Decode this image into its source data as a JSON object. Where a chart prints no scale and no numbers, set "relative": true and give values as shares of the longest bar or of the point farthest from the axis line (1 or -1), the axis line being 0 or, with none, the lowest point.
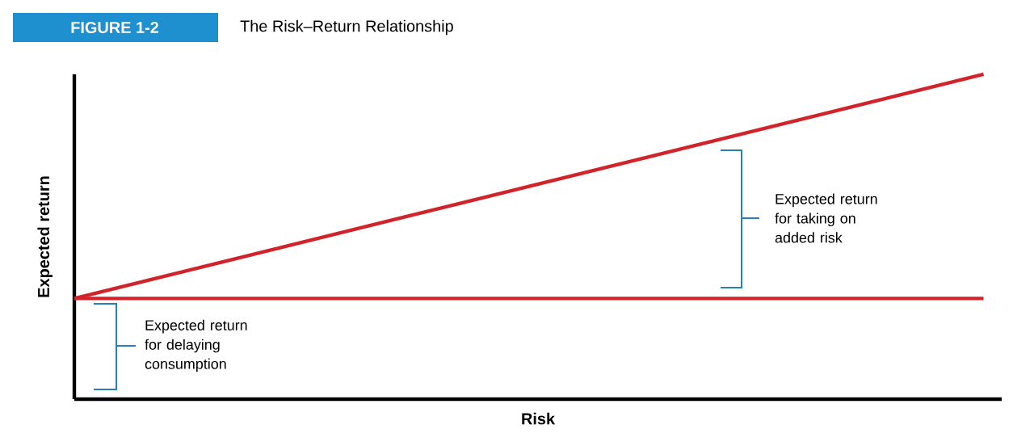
{
  "chart_data": {
    "type": "line",
    "title": "The Risk–Return Relationship",
    "xlabel": "Risk",
    "ylabel": "Expected return",
    "relative": true,
    "categories": [
      null,
      null
    ],
    "series": [
      {
        "color": "#d2232a",
        "values": [
          0.31,
          1.0
        ]
      },
      {
        "color": "#d2232a",
        "values": [
          0.31,
          0.31
        ]
      }
    ],
    "annotations": [
      "FIGURE 1-2",
      "Expected return for taking on added risk",
      "Expected return for delaying consumption"
    ]
  }
}
